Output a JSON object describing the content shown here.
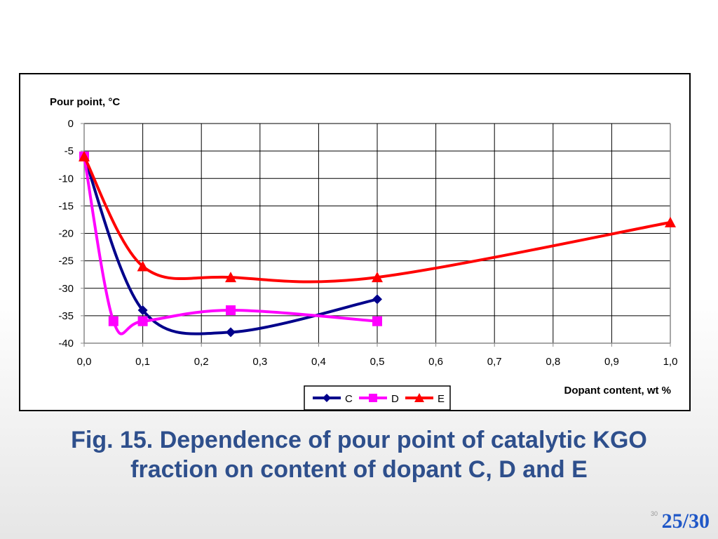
{
  "slide": {
    "caption_line1": "Fig. 15. Dependence of pour point of catalytic KGO",
    "caption_line2": "fraction on content of dopant C, D and E",
    "page_counter": "25/30",
    "slide_number": "30"
  },
  "colors": {
    "caption": "#2e4f8c",
    "page_counter": "#1f57c7",
    "series_C": "#00008b",
    "series_D": "#ff00ff",
    "series_E": "#ff0000"
  },
  "chart_data": {
    "type": "line",
    "ylabel": "Pour point, °C",
    "xlabel": "Dopant content, wt %",
    "xlim": [
      0,
      1.0
    ],
    "ylim": [
      -40,
      0
    ],
    "x_ticks": [
      "0,0",
      "0,1",
      "0,2",
      "0,3",
      "0,4",
      "0,5",
      "0,6",
      "0,7",
      "0,8",
      "0,9",
      "1,0"
    ],
    "x_tick_values": [
      0,
      0.1,
      0.2,
      0.3,
      0.4,
      0.5,
      0.6,
      0.7,
      0.8,
      0.9,
      1.0
    ],
    "y_ticks": [
      "0",
      "-5",
      "-10",
      "-15",
      "-20",
      "-25",
      "-30",
      "-35",
      "-40"
    ],
    "y_tick_values": [
      0,
      -5,
      -10,
      -15,
      -20,
      -25,
      -30,
      -35,
      -40
    ],
    "grid": true,
    "smoothed": true,
    "legend_position": "bottom-center",
    "series": [
      {
        "name": "C",
        "marker": "diamond",
        "color": "#00008b",
        "x": [
          0,
          0.1,
          0.25,
          0.5
        ],
        "y": [
          -6,
          -34,
          -38,
          -32
        ]
      },
      {
        "name": "D",
        "marker": "square",
        "color": "#ff00ff",
        "x": [
          0,
          0.05,
          0.1,
          0.25,
          0.5
        ],
        "y": [
          -6,
          -36,
          -36,
          -34,
          -36
        ]
      },
      {
        "name": "E",
        "marker": "triangle",
        "color": "#ff0000",
        "x": [
          0,
          0.1,
          0.25,
          0.5,
          1.0
        ],
        "y": [
          -6,
          -26,
          -28,
          -28,
          -18
        ]
      }
    ]
  }
}
